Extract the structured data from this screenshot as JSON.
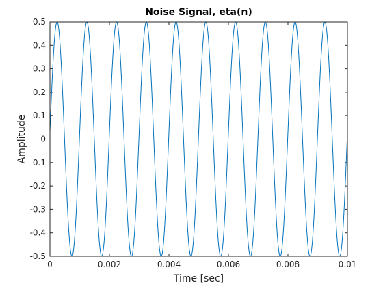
{
  "chart_data": {
    "type": "line",
    "title": "Noise Signal, eta(n)",
    "xlabel": "Time [sec]",
    "ylabel": "Amplitude",
    "xlim": [
      0,
      0.01
    ],
    "ylim": [
      -0.5,
      0.5
    ],
    "x_ticks": [
      0,
      0.002,
      0.004,
      0.006,
      0.008,
      0.01
    ],
    "x_tick_labels": [
      "0",
      "0.002",
      "0.004",
      "0.006",
      "0.008",
      "0.01"
    ],
    "y_ticks": [
      -0.5,
      -0.4,
      -0.3,
      -0.2,
      -0.1,
      0,
      0.1,
      0.2,
      0.3,
      0.4,
      0.5
    ],
    "y_tick_labels": [
      "-0.5",
      "-0.4",
      "-0.3",
      "-0.2",
      "-0.1",
      "0",
      "0.1",
      "0.2",
      "0.3",
      "0.4",
      "0.5"
    ],
    "grid": false,
    "series": [
      {
        "color": "#0072BD",
        "waveform": "sine",
        "amplitude": 0.5,
        "frequency_hz": 1000,
        "x_start": 0,
        "x_end": 0.01,
        "start_value": 0.03,
        "end_value": -0.09
      }
    ]
  }
}
